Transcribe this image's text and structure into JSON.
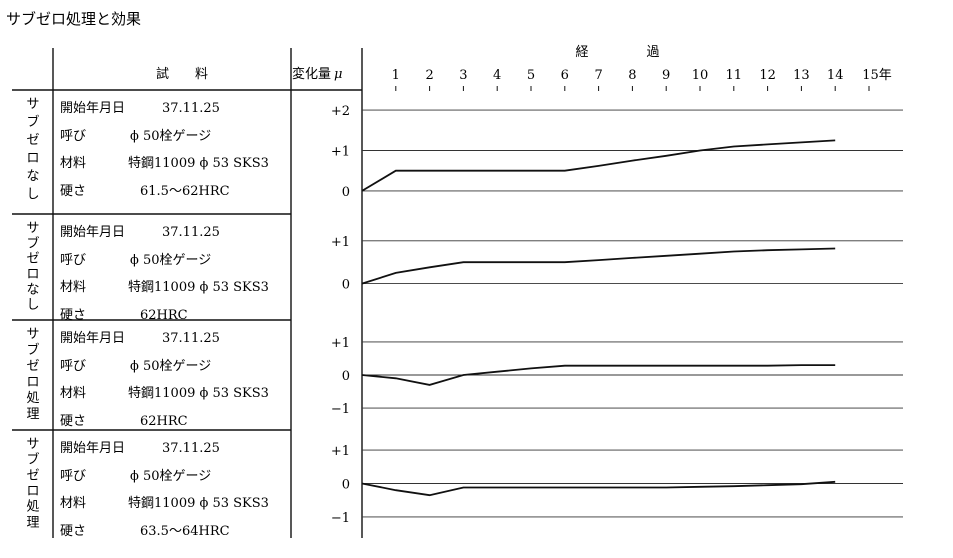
{
  "title": "サブゼロ処理と効果",
  "header": {
    "sample": "試　　料",
    "change": "変化量",
    "mu": "μ",
    "elapsed_1": "経",
    "elapsed_2": "過",
    "year_unit": "年"
  },
  "chart_data": {
    "type": "line",
    "x_ticks": [
      1,
      2,
      3,
      4,
      5,
      6,
      7,
      8,
      9,
      10,
      11,
      12,
      13,
      14,
      15
    ],
    "xlim": [
      0,
      15.8
    ],
    "panels": [
      {
        "label": "サブゼロなし",
        "info": [
          {
            "key": "開始年月日",
            "value": "37.11.25"
          },
          {
            "key": "呼び",
            "value": "ϕ 50栓ゲージ"
          },
          {
            "key": "材料",
            "value": "特鋼11009 ϕ 53 SKS3"
          },
          {
            "key": "硬さ",
            "value": "61.5〜62HRC"
          }
        ],
        "yticks": [
          "+2",
          "+1",
          "0"
        ],
        "ytick_values": [
          2,
          1,
          0
        ],
        "ylim": [
          -0.15,
          2.2
        ],
        "x": [
          0,
          1,
          2,
          3,
          4,
          5,
          6,
          7,
          8,
          9,
          10,
          11,
          12,
          13,
          14
        ],
        "y": [
          0,
          0.5,
          0.5,
          0.5,
          0.5,
          0.5,
          0.5,
          0.62,
          0.75,
          0.87,
          1.0,
          1.1,
          1.15,
          1.2,
          1.25
        ]
      },
      {
        "label": "サブゼロなし",
        "info": [
          {
            "key": "開始年月日",
            "value": "37.11.25"
          },
          {
            "key": "呼び",
            "value": "ϕ 50栓ゲージ"
          },
          {
            "key": "材料",
            "value": "特鋼11009 ϕ 53 SKS3"
          },
          {
            "key": "硬さ",
            "value": "62HRC"
          }
        ],
        "yticks": [
          "+1",
          "0"
        ],
        "ytick_values": [
          1,
          0
        ],
        "ylim": [
          -0.15,
          1.3
        ],
        "x": [
          0,
          1,
          2,
          3,
          4,
          5,
          6,
          7,
          8,
          9,
          10,
          11,
          12,
          13,
          14
        ],
        "y": [
          0,
          0.25,
          0.38,
          0.5,
          0.5,
          0.5,
          0.5,
          0.55,
          0.6,
          0.65,
          0.7,
          0.75,
          0.78,
          0.8,
          0.82
        ]
      },
      {
        "label": "サブゼロ処理",
        "info": [
          {
            "key": "開始年月日",
            "value": "37.11.25"
          },
          {
            "key": "呼び",
            "value": "ϕ 50栓ゲージ"
          },
          {
            "key": "材料",
            "value": "特鋼11009 ϕ 53 SKS3"
          },
          {
            "key": "硬さ",
            "value": "62HRC"
          }
        ],
        "yticks": [
          "+1",
          "0",
          "−1"
        ],
        "ytick_values": [
          1,
          0,
          -1
        ],
        "ylim": [
          -1.3,
          1.3
        ],
        "x": [
          0,
          1,
          2,
          3,
          4,
          5,
          6,
          7,
          8,
          9,
          10,
          11,
          12,
          13,
          14
        ],
        "y": [
          0,
          -0.1,
          -0.3,
          0,
          0.1,
          0.2,
          0.28,
          0.28,
          0.28,
          0.28,
          0.28,
          0.28,
          0.28,
          0.3,
          0.3
        ]
      },
      {
        "label": "サブゼロ処理",
        "info": [
          {
            "key": "開始年月日",
            "value": "37.11.25"
          },
          {
            "key": "呼び",
            "value": "ϕ 50栓ゲージ"
          },
          {
            "key": "材料",
            "value": "特鋼11009 ϕ 53 SKS3"
          },
          {
            "key": "硬さ",
            "value": "63.5〜64HRC"
          }
        ],
        "yticks": [
          "+1",
          "0",
          "−1"
        ],
        "ytick_values": [
          1,
          0,
          -1
        ],
        "ylim": [
          -1.3,
          1.3
        ],
        "x": [
          0,
          1,
          2,
          3,
          4,
          5,
          6,
          7,
          8,
          9,
          10,
          11,
          12,
          13,
          14
        ],
        "y": [
          0,
          -0.2,
          -0.35,
          -0.12,
          -0.12,
          -0.12,
          -0.12,
          -0.12,
          -0.12,
          -0.12,
          -0.1,
          -0.08,
          -0.05,
          -0.02,
          0.05
        ]
      }
    ]
  }
}
